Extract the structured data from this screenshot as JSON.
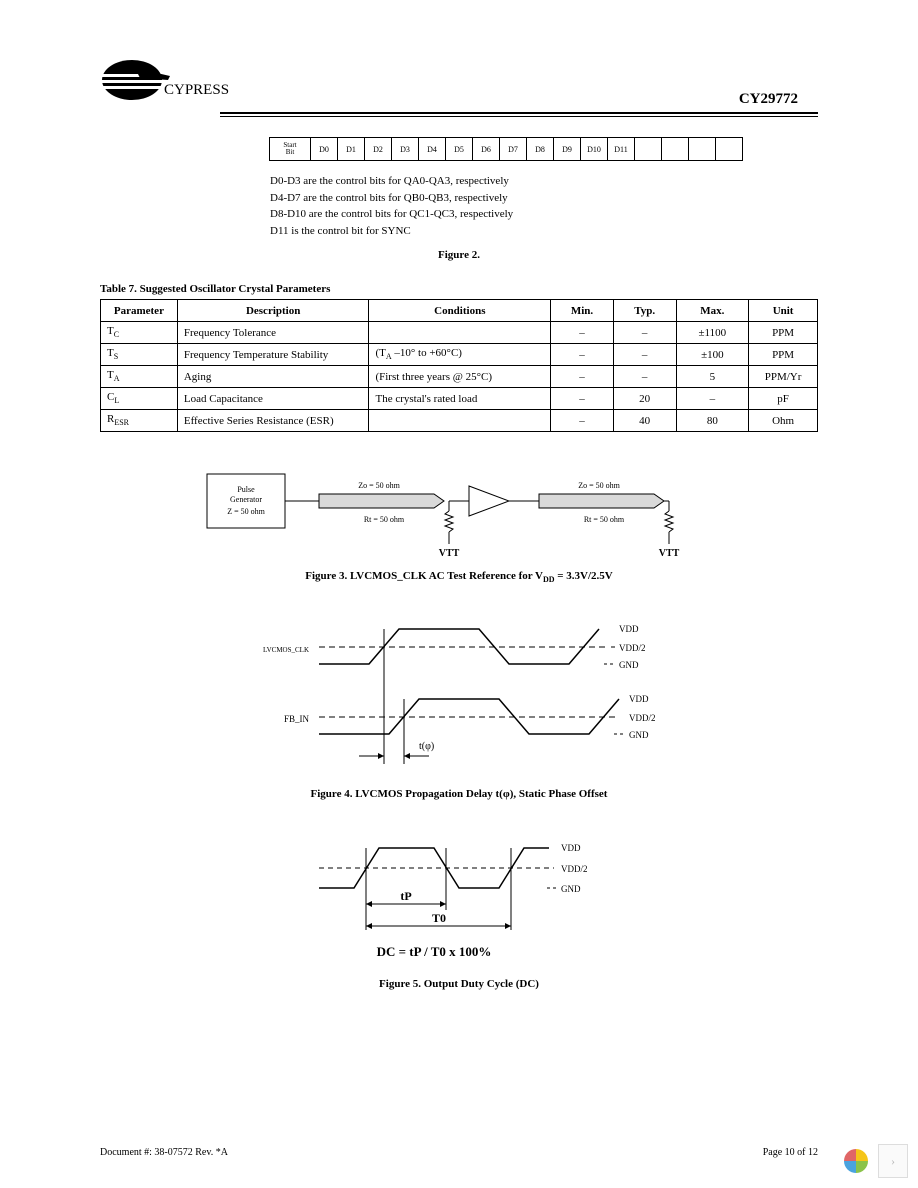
{
  "header": {
    "brand": "CYPRESS",
    "part_number": "CY29772"
  },
  "bit_table": {
    "cells": [
      "Start\nBit",
      "D0",
      "D1",
      "D2",
      "D3",
      "D4",
      "D5",
      "D6",
      "D7",
      "D8",
      "D9",
      "D10",
      "D11",
      "",
      "",
      "",
      ""
    ]
  },
  "bit_desc": {
    "l1": "D0-D3 are the control bits for QA0-QA3, respectively",
    "l2": "D4-D7 are the control bits for QB0-QB3, respectively",
    "l3": "D8-D10 are the control bits for QC1-QC3, respectively",
    "l4": "D11 is the control bit for SYNC"
  },
  "fig2_caption": "Figure 2.",
  "table7": {
    "title": "Table 7. Suggested Oscillator Crystal Parameters",
    "headers": [
      "Parameter",
      "Description",
      "Conditions",
      "Min.",
      "Typ.",
      "Max.",
      "Unit"
    ],
    "rows": [
      {
        "param": "T",
        "psub": "C",
        "desc": "Frequency Tolerance",
        "cond": "",
        "min": "–",
        "typ": "–",
        "max": "±1100",
        "unit": "PPM"
      },
      {
        "param": "T",
        "psub": "S",
        "desc": "Frequency Temperature Stability",
        "cond": "(T",
        "condsub": "A",
        "cond2": " –10° to +60°C)",
        "min": "–",
        "typ": "–",
        "max": "±100",
        "unit": "PPM"
      },
      {
        "param": "T",
        "psub": "A",
        "desc": "Aging",
        "cond": "(First three years @ 25°C)",
        "min": "–",
        "typ": "–",
        "max": "5",
        "unit": "PPM/Yr"
      },
      {
        "param": "C",
        "psub": "L",
        "desc": "Load Capacitance",
        "cond": "The crystal's rated load",
        "min": "–",
        "typ": "20",
        "max": "–",
        "unit": "pF"
      },
      {
        "param": "R",
        "psub": "ESR",
        "desc": "Effective Series Resistance (ESR)",
        "cond": "",
        "min": "–",
        "typ": "40",
        "max": "80",
        "unit": "Ohm"
      }
    ]
  },
  "fig3": {
    "pulse_gen_l1": "Pulse",
    "pulse_gen_l2": "Generator",
    "pulse_gen_l3": "Z = 50 ohm",
    "zo_label": "Zo = 50 ohm",
    "rt_label": "Rt = 50 ohm",
    "vtt": "VTT",
    "caption_pre": "Figure 3. LVCMOS_CLK AC Test Reference for V",
    "caption_sub": "DD",
    "caption_post": " = 3.3V/2.5V"
  },
  "fig4": {
    "lvcmos_clk": "LVCMOS_CLK",
    "fb_in": "FB_IN",
    "vdd": "VDD",
    "vdd2": "VDD/2",
    "gnd": "GND",
    "tphi": "t(φ)",
    "caption_pre": "Figure 4. LVCMOS Propagation Delay t(",
    "caption_mid": "φ",
    "caption_post": "), Static Phase Offset"
  },
  "fig5": {
    "vdd": "VDD",
    "vdd2": "VDD/2",
    "gnd": "GND",
    "tp": "tP",
    "t0": "T0",
    "formula": "DC = tP / T0 x 100%",
    "caption": "Figure 5. Output Duty Cycle (DC)"
  },
  "footer": {
    "left": "Document #: 38-07572  Rev. *A",
    "right": "Page 10 of 12"
  },
  "colors": {
    "trace_fill": "#d9d9d9",
    "petal_yellow": "#f5c518",
    "petal_green": "#8bc34a",
    "petal_blue": "#4aa3df",
    "petal_red": "#e06666"
  }
}
